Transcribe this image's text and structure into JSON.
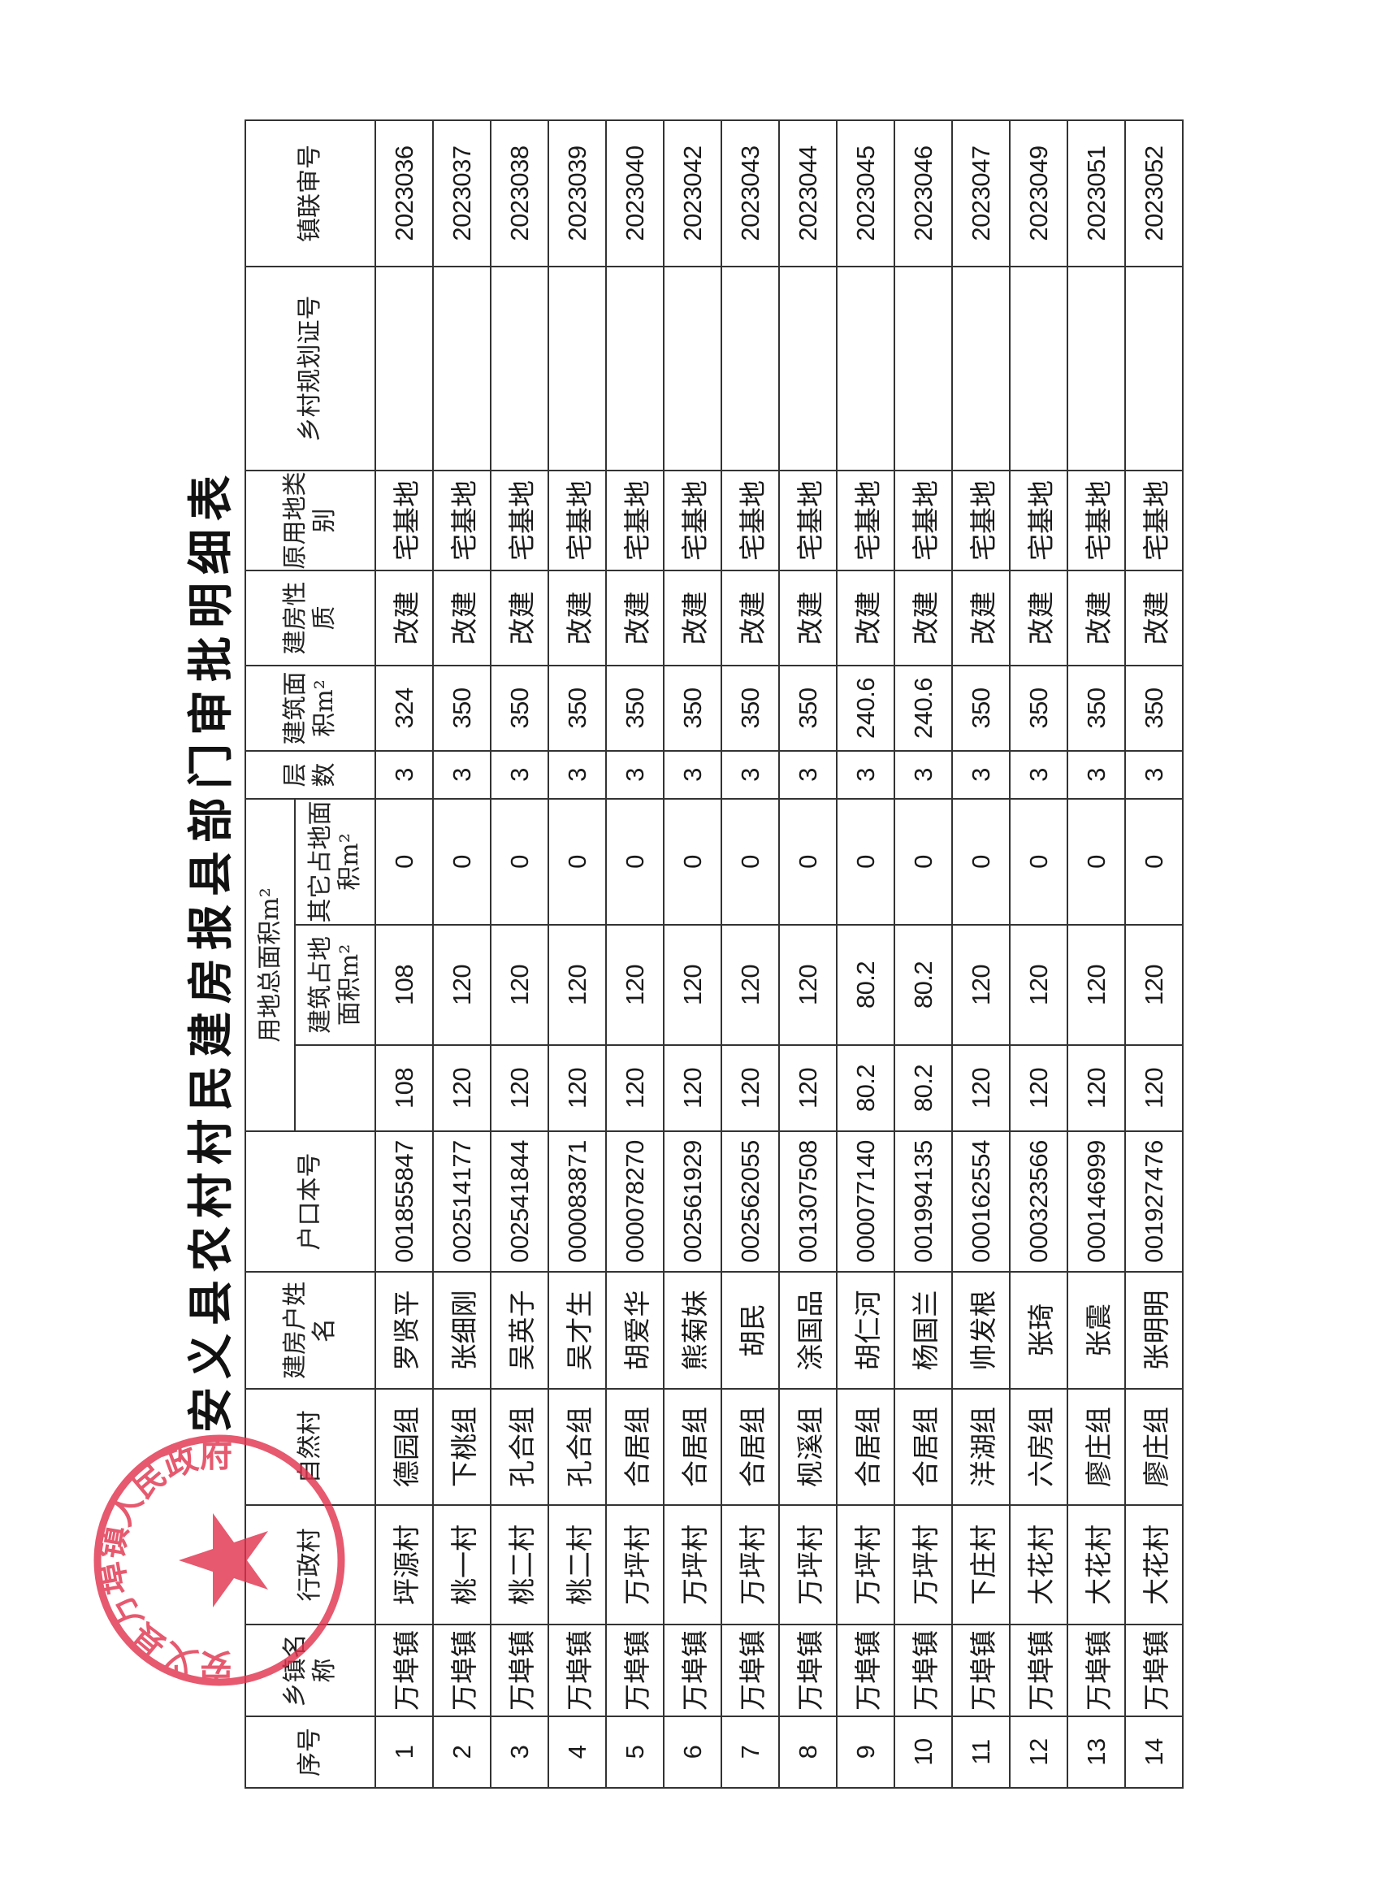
{
  "title": "安义县农村村民建房报县部门审批明细表",
  "stamp": {
    "text": "安义县万埠镇人民政府",
    "color": "#e0304a",
    "icon": "star-icon"
  },
  "headers": {
    "seq": "序号",
    "town": "乡镇名称",
    "admin_village": "行政村",
    "natural_village": "自然村",
    "owner": "建房户姓名",
    "household_no": "户口本号",
    "land_total_group": "用地总面积m²",
    "building_land": "建筑占地面积m²",
    "other_land": "其它占地面积m²",
    "floors": "层数",
    "floor_area": "建筑面积m²",
    "nature": "建房性质",
    "orig_land_type": "原用地类别",
    "planning_permit": "乡村规划证号",
    "joint_review_no": "镇联审号"
  },
  "rows": [
    {
      "seq": "1",
      "town": "万埠镇",
      "admin_village": "坪源村",
      "natural_village": "德园组",
      "owner": "罗贤平",
      "household_no": "001855847",
      "total": "108",
      "building_land": "108",
      "other_land": "0",
      "floors": "3",
      "floor_area": "324",
      "nature": "改建",
      "orig_land_type": "宅基地",
      "planning_permit": "",
      "joint_review_no": "2023036"
    },
    {
      "seq": "2",
      "town": "万埠镇",
      "admin_village": "桃一村",
      "natural_village": "下桃组",
      "owner": "张细刚",
      "household_no": "002514177",
      "total": "120",
      "building_land": "120",
      "other_land": "0",
      "floors": "3",
      "floor_area": "350",
      "nature": "改建",
      "orig_land_type": "宅基地",
      "planning_permit": "",
      "joint_review_no": "2023037"
    },
    {
      "seq": "3",
      "town": "万埠镇",
      "admin_village": "桃二村",
      "natural_village": "孔合组",
      "owner": "吴英子",
      "household_no": "002541844",
      "total": "120",
      "building_land": "120",
      "other_land": "0",
      "floors": "3",
      "floor_area": "350",
      "nature": "改建",
      "orig_land_type": "宅基地",
      "planning_permit": "",
      "joint_review_no": "2023038"
    },
    {
      "seq": "4",
      "town": "万埠镇",
      "admin_village": "桃二村",
      "natural_village": "孔合组",
      "owner": "吴才生",
      "household_no": "000083871",
      "total": "120",
      "building_land": "120",
      "other_land": "0",
      "floors": "3",
      "floor_area": "350",
      "nature": "改建",
      "orig_land_type": "宅基地",
      "planning_permit": "",
      "joint_review_no": "2023039"
    },
    {
      "seq": "5",
      "town": "万埠镇",
      "admin_village": "万坪村",
      "natural_village": "合居组",
      "owner": "胡爱华",
      "household_no": "000078270",
      "total": "120",
      "building_land": "120",
      "other_land": "0",
      "floors": "3",
      "floor_area": "350",
      "nature": "改建",
      "orig_land_type": "宅基地",
      "planning_permit": "",
      "joint_review_no": "2023040"
    },
    {
      "seq": "6",
      "town": "万埠镇",
      "admin_village": "万坪村",
      "natural_village": "合居组",
      "owner": "熊菊妹",
      "household_no": "002561929",
      "total": "120",
      "building_land": "120",
      "other_land": "0",
      "floors": "3",
      "floor_area": "350",
      "nature": "改建",
      "orig_land_type": "宅基地",
      "planning_permit": "",
      "joint_review_no": "2023042"
    },
    {
      "seq": "7",
      "town": "万埠镇",
      "admin_village": "万坪村",
      "natural_village": "合居组",
      "owner": "胡民",
      "household_no": "002562055",
      "total": "120",
      "building_land": "120",
      "other_land": "0",
      "floors": "3",
      "floor_area": "350",
      "nature": "改建",
      "orig_land_type": "宅基地",
      "planning_permit": "",
      "joint_review_no": "2023043"
    },
    {
      "seq": "8",
      "town": "万埠镇",
      "admin_village": "万坪村",
      "natural_village": "枧溪组",
      "owner": "涂国品",
      "household_no": "001307508",
      "total": "120",
      "building_land": "120",
      "other_land": "0",
      "floors": "3",
      "floor_area": "350",
      "nature": "改建",
      "orig_land_type": "宅基地",
      "planning_permit": "",
      "joint_review_no": "2023044"
    },
    {
      "seq": "9",
      "town": "万埠镇",
      "admin_village": "万坪村",
      "natural_village": "合居组",
      "owner": "胡仁河",
      "household_no": "000077140",
      "total": "80.2",
      "building_land": "80.2",
      "other_land": "0",
      "floors": "3",
      "floor_area": "240.6",
      "nature": "改建",
      "orig_land_type": "宅基地",
      "planning_permit": "",
      "joint_review_no": "2023045"
    },
    {
      "seq": "10",
      "town": "万埠镇",
      "admin_village": "万坪村",
      "natural_village": "合居组",
      "owner": "杨国兰",
      "household_no": "001994135",
      "total": "80.2",
      "building_land": "80.2",
      "other_land": "0",
      "floors": "3",
      "floor_area": "240.6",
      "nature": "改建",
      "orig_land_type": "宅基地",
      "planning_permit": "",
      "joint_review_no": "2023046"
    },
    {
      "seq": "11",
      "town": "万埠镇",
      "admin_village": "下庄村",
      "natural_village": "洋湖组",
      "owner": "帅发根",
      "household_no": "000162554",
      "total": "120",
      "building_land": "120",
      "other_land": "0",
      "floors": "3",
      "floor_area": "350",
      "nature": "改建",
      "orig_land_type": "宅基地",
      "planning_permit": "",
      "joint_review_no": "2023047"
    },
    {
      "seq": "12",
      "town": "万埠镇",
      "admin_village": "大花村",
      "natural_village": "六房组",
      "owner": "张琦",
      "household_no": "000323566",
      "total": "120",
      "building_land": "120",
      "other_land": "0",
      "floors": "3",
      "floor_area": "350",
      "nature": "改建",
      "orig_land_type": "宅基地",
      "planning_permit": "",
      "joint_review_no": "2023049"
    },
    {
      "seq": "13",
      "town": "万埠镇",
      "admin_village": "大花村",
      "natural_village": "廖庄组",
      "owner": "张震",
      "household_no": "000146999",
      "total": "120",
      "building_land": "120",
      "other_land": "0",
      "floors": "3",
      "floor_area": "350",
      "nature": "改建",
      "orig_land_type": "宅基地",
      "planning_permit": "",
      "joint_review_no": "2023051"
    },
    {
      "seq": "14",
      "town": "万埠镇",
      "admin_village": "大花村",
      "natural_village": "廖庄组",
      "owner": "张明明",
      "household_no": "001927476",
      "total": "120",
      "building_land": "120",
      "other_land": "0",
      "floors": "3",
      "floor_area": "350",
      "nature": "改建",
      "orig_land_type": "宅基地",
      "planning_permit": "",
      "joint_review_no": "2023052"
    }
  ]
}
